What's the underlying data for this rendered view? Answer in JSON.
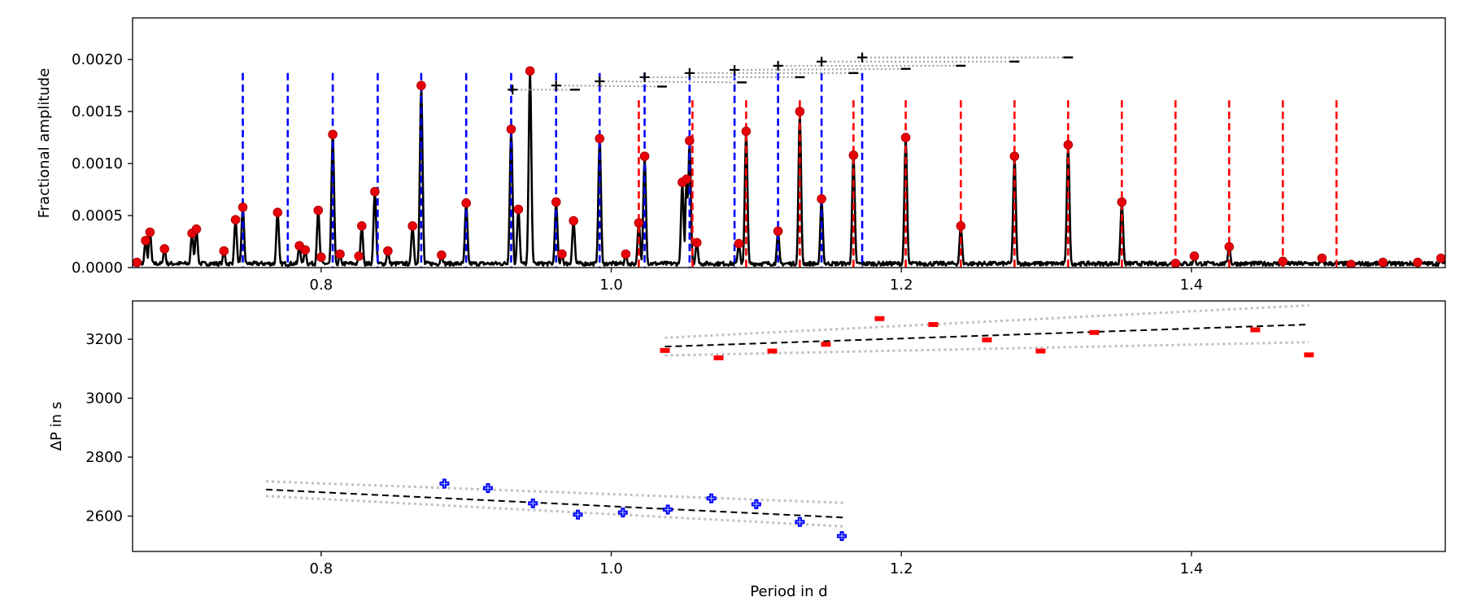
{
  "chart_data": [
    {
      "type": "line",
      "ylabel": "Fractional amplitude",
      "xlim": [
        0.67,
        1.575
      ],
      "ylim": [
        0.0,
        0.0024
      ],
      "xticks": [
        0.8,
        1.0,
        1.2,
        1.4
      ],
      "xtick_labels": [
        "0.8",
        "1.0",
        "1.2",
        "1.4"
      ],
      "yticks": [
        0.0,
        0.0005,
        0.001,
        0.0015,
        0.002
      ],
      "ytick_labels": [
        "0.0000",
        "0.0005",
        "0.0010",
        "0.0015",
        "0.0020"
      ],
      "colors": {
        "spectrum": "#000000",
        "peaks": "#e8000b",
        "blue_series": "#0000ff",
        "red_series": "#ff0000",
        "links": "#999999"
      },
      "blue_series_periods": [
        0.746,
        0.777,
        0.808,
        0.839,
        0.869,
        0.9,
        0.931,
        0.962,
        0.992,
        1.023,
        1.054,
        1.085,
        1.115,
        1.145,
        1.173
      ],
      "red_series_periods": [
        1.019,
        1.056,
        1.093,
        1.13,
        1.167,
        1.203,
        1.241,
        1.278,
        1.315,
        1.352,
        1.389,
        1.426,
        1.463,
        1.5
      ],
      "series_top": 0.00187,
      "peaks": [
        {
          "x": 0.673,
          "y": 5e-05
        },
        {
          "x": 0.679,
          "y": 0.00026
        },
        {
          "x": 0.682,
          "y": 0.00034
        },
        {
          "x": 0.692,
          "y": 0.00018
        },
        {
          "x": 0.711,
          "y": 0.00033
        },
        {
          "x": 0.714,
          "y": 0.00037
        },
        {
          "x": 0.733,
          "y": 0.00016
        },
        {
          "x": 0.741,
          "y": 0.00046
        },
        {
          "x": 0.746,
          "y": 0.00058
        },
        {
          "x": 0.77,
          "y": 0.00053
        },
        {
          "x": 0.785,
          "y": 0.00021
        },
        {
          "x": 0.789,
          "y": 0.00017
        },
        {
          "x": 0.798,
          "y": 0.00055
        },
        {
          "x": 0.8,
          "y": 0.0001
        },
        {
          "x": 0.808,
          "y": 0.00128
        },
        {
          "x": 0.813,
          "y": 0.00013
        },
        {
          "x": 0.826,
          "y": 0.00011
        },
        {
          "x": 0.828,
          "y": 0.0004
        },
        {
          "x": 0.837,
          "y": 0.00073
        },
        {
          "x": 0.846,
          "y": 0.00016
        },
        {
          "x": 0.863,
          "y": 0.0004
        },
        {
          "x": 0.869,
          "y": 0.00175
        },
        {
          "x": 0.883,
          "y": 0.00012
        },
        {
          "x": 0.9,
          "y": 0.00062
        },
        {
          "x": 0.931,
          "y": 0.00133
        },
        {
          "x": 0.936,
          "y": 0.00056
        },
        {
          "x": 0.944,
          "y": 0.00189
        },
        {
          "x": 0.962,
          "y": 0.00063
        },
        {
          "x": 0.966,
          "y": 0.00013
        },
        {
          "x": 0.974,
          "y": 0.00045
        },
        {
          "x": 0.992,
          "y": 0.00124
        },
        {
          "x": 1.01,
          "y": 0.00013
        },
        {
          "x": 1.019,
          "y": 0.00043
        },
        {
          "x": 1.023,
          "y": 0.00107
        },
        {
          "x": 1.049,
          "y": 0.00082
        },
        {
          "x": 1.052,
          "y": 0.00085
        },
        {
          "x": 1.054,
          "y": 0.00122
        },
        {
          "x": 1.059,
          "y": 0.00024
        },
        {
          "x": 1.088,
          "y": 0.00023
        },
        {
          "x": 1.093,
          "y": 0.00131
        },
        {
          "x": 1.115,
          "y": 0.00035
        },
        {
          "x": 1.13,
          "y": 0.0015
        },
        {
          "x": 1.145,
          "y": 0.00066
        },
        {
          "x": 1.167,
          "y": 0.00108
        },
        {
          "x": 1.203,
          "y": 0.00125
        },
        {
          "x": 1.241,
          "y": 0.0004
        },
        {
          "x": 1.278,
          "y": 0.00107
        },
        {
          "x": 1.315,
          "y": 0.00118
        },
        {
          "x": 1.352,
          "y": 0.00063
        },
        {
          "x": 1.389,
          "y": 4e-05
        },
        {
          "x": 1.402,
          "y": 0.00011
        },
        {
          "x": 1.426,
          "y": 0.0002
        },
        {
          "x": 1.463,
          "y": 6e-05
        },
        {
          "x": 1.49,
          "y": 9e-05
        },
        {
          "x": 1.51,
          "y": 3e-05
        },
        {
          "x": 1.532,
          "y": 5e-05
        },
        {
          "x": 1.556,
          "y": 5e-05
        },
        {
          "x": 1.572,
          "y": 9e-05
        }
      ],
      "linkage": {
        "plus": [
          {
            "x": 0.932,
            "y": 0.00171
          },
          {
            "x": 0.962,
            "y": 0.00175
          },
          {
            "x": 0.992,
            "y": 0.00179
          },
          {
            "x": 1.023,
            "y": 0.00183
          },
          {
            "x": 1.054,
            "y": 0.00187
          },
          {
            "x": 1.085,
            "y": 0.0019
          },
          {
            "x": 1.115,
            "y": 0.00194
          },
          {
            "x": 1.145,
            "y": 0.00198
          },
          {
            "x": 1.173,
            "y": 0.00202
          }
        ],
        "minus": [
          {
            "x": 0.975,
            "y": 0.00171
          },
          {
            "x": 1.035,
            "y": 0.00174
          },
          {
            "x": 1.09,
            "y": 0.00178
          },
          {
            "x": 1.13,
            "y": 0.00183
          },
          {
            "x": 1.167,
            "y": 0.00187
          },
          {
            "x": 1.203,
            "y": 0.00191
          },
          {
            "x": 1.241,
            "y": 0.00194
          },
          {
            "x": 1.278,
            "y": 0.00198
          },
          {
            "x": 1.315,
            "y": 0.00202
          }
        ]
      }
    },
    {
      "type": "scatter",
      "xlabel": "Period in d",
      "ylabel": "ΔP in s",
      "xlim": [
        0.67,
        1.575
      ],
      "ylim": [
        2480,
        3330
      ],
      "xticks": [
        0.8,
        1.0,
        1.2,
        1.4
      ],
      "xtick_labels": [
        "0.8",
        "1.0",
        "1.2",
        "1.4"
      ],
      "yticks": [
        2600,
        2800,
        3000,
        3200
      ],
      "ytick_labels": [
        "2600",
        "2800",
        "3000",
        "3200"
      ],
      "series": [
        {
          "marker": "plus",
          "color": "#0000ff",
          "x": [
            0.885,
            0.915,
            0.946,
            0.977,
            1.008,
            1.039,
            1.069,
            1.1,
            1.13,
            1.159
          ],
          "y": [
            2710,
            2695,
            2643,
            2605,
            2612,
            2622,
            2660,
            2640,
            2580,
            2532
          ],
          "fit": {
            "x": [
              0.762,
              1.16
            ],
            "y": [
              2690,
              2595
            ]
          },
          "band_upper": {
            "x": [
              0.762,
              1.16
            ],
            "y": [
              2718,
              2645
            ]
          },
          "band_lower": {
            "x": [
              0.762,
              1.16
            ],
            "y": [
              2668,
              2565
            ]
          }
        },
        {
          "marker": "minus",
          "color": "#ff0000",
          "x": [
            1.037,
            1.074,
            1.111,
            1.148,
            1.185,
            1.222,
            1.259,
            1.296,
            1.333,
            1.444,
            1.481
          ],
          "y": [
            3162,
            3137,
            3160,
            3183,
            3270,
            3250,
            3198,
            3160,
            3223,
            3232,
            3147
          ],
          "fit": {
            "x": [
              1.037,
              1.481
            ],
            "y": [
              3175,
              3250
            ]
          },
          "band_upper": {
            "x": [
              1.037,
              1.481
            ],
            "y": [
              3205,
              3315
            ]
          },
          "band_lower": {
            "x": [
              1.037,
              1.481
            ],
            "y": [
              3145,
              3190
            ]
          }
        }
      ]
    }
  ]
}
